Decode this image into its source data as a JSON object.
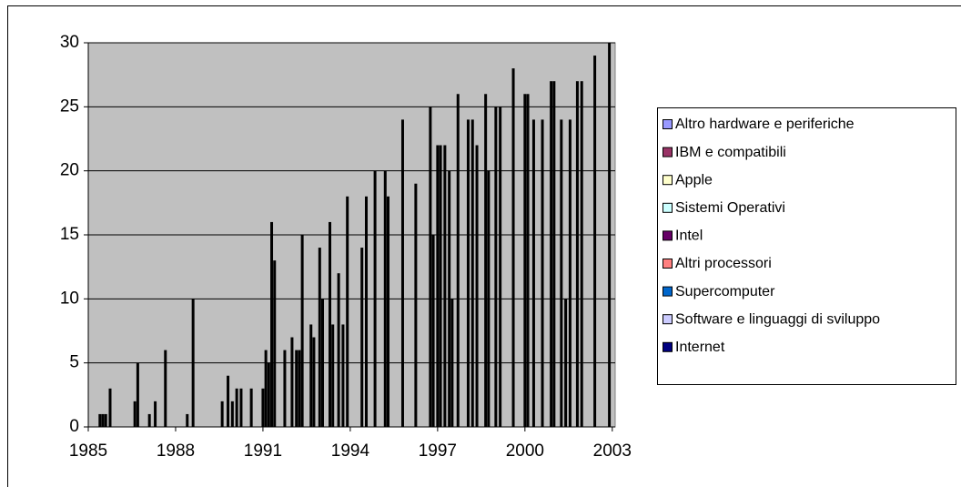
{
  "chart_data": {
    "type": "bar",
    "x": [
      1985.4,
      1985.5,
      1985.6,
      1985.75,
      1986.6,
      1986.7,
      1987.1,
      1987.3,
      1987.65,
      1988.4,
      1988.6,
      1989.6,
      1989.8,
      1989.95,
      1990.1,
      1990.25,
      1990.6,
      1991.0,
      1991.1,
      1991.2,
      1991.3,
      1991.4,
      1991.75,
      1992.0,
      1992.15,
      1992.25,
      1992.35,
      1992.65,
      1992.75,
      1992.95,
      1993.05,
      1993.3,
      1993.4,
      1993.6,
      1993.75,
      1993.9,
      1994.4,
      1994.55,
      1994.85,
      1995.2,
      1995.3,
      1995.8,
      1996.25,
      1996.75,
      1996.85,
      1997.0,
      1997.1,
      1997.25,
      1997.4,
      1997.5,
      1997.7,
      1998.05,
      1998.2,
      1998.35,
      1998.65,
      1998.75,
      1999.0,
      1999.15,
      1999.6,
      2000.0,
      2000.1,
      2000.3,
      2000.6,
      2000.9,
      2001.0,
      2001.25,
      2001.4,
      2001.55,
      2001.8,
      2001.95,
      2002.4,
      2002.9
    ],
    "values": [
      1,
      1,
      1,
      3,
      2,
      5,
      1,
      2,
      6,
      1,
      10,
      2,
      4,
      2,
      3,
      3,
      3,
      3,
      6,
      5,
      16,
      13,
      6,
      7,
      6,
      6,
      15,
      8,
      7,
      14,
      10,
      16,
      8,
      12,
      8,
      18,
      14,
      18,
      20,
      20,
      18,
      24,
      19,
      25,
      15,
      22,
      22,
      22,
      20,
      10,
      26,
      24,
      24,
      22,
      26,
      20,
      25,
      25,
      28,
      26,
      26,
      24,
      24,
      27,
      27,
      24,
      10,
      24,
      27,
      27,
      29,
      30
    ],
    "bar_color": "#000000",
    "series": [
      {
        "name": "Altro hardware e periferiche",
        "color": "#9999ff"
      },
      {
        "name": "IBM e compatibili",
        "color": "#993366"
      },
      {
        "name": "Apple",
        "color": "#ffffcc"
      },
      {
        "name": "Sistemi Operativi",
        "color": "#ccffff"
      },
      {
        "name": "Intel",
        "color": "#660066"
      },
      {
        "name": "Altri processori",
        "color": "#ff8080"
      },
      {
        "name": "Supercomputer",
        "color": "#0066cc"
      },
      {
        "name": "Software e linguaggi di sviluppo",
        "color": "#ccccff"
      },
      {
        "name": "Internet",
        "color": "#000080"
      }
    ],
    "xlim": [
      1985,
      2003.1
    ],
    "xticks": [
      1985,
      1988,
      1991,
      1994,
      1997,
      2000,
      2003
    ],
    "ylim": [
      0,
      30
    ],
    "yticks": [
      0,
      5,
      10,
      15,
      20,
      25,
      30
    ],
    "grid": true,
    "legend": "right"
  }
}
